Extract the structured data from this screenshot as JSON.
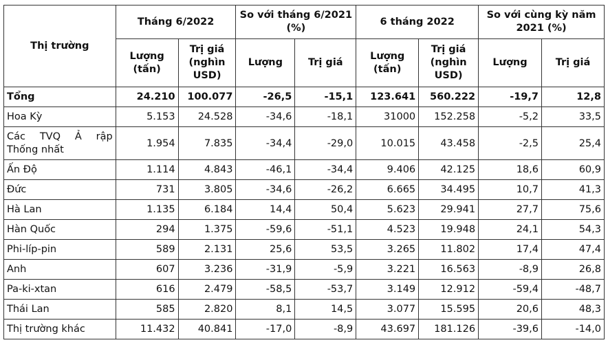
{
  "header": {
    "market": "Thị trường",
    "groups": [
      "Tháng 6/2022",
      "So với tháng 6/2021 (%)",
      "6 tháng 2022",
      "So với cùng kỳ năm 2021 (%)"
    ],
    "sub": [
      "Lượng (tấn)",
      "Trị giá (nghìn USD)",
      "Lượng",
      "Trị giá",
      "Lượng (tấn)",
      "Trị giá (nghìn USD)",
      "Lượng",
      "Trị giá"
    ]
  },
  "rows": [
    {
      "market": "Tổng",
      "v": [
        "24.210",
        "100.077",
        "-26,5",
        "-15,1",
        "123.641",
        "560.222",
        "-19,7",
        "12,8"
      ]
    },
    {
      "market": "Hoa Kỳ",
      "v": [
        "5.153",
        "24.528",
        "-34,6",
        "-18,1",
        "31000",
        "152.258",
        "-5,2",
        "33,5"
      ]
    },
    {
      "market": "Các TVQ Ả rập Thống nhất",
      "v": [
        "1.954",
        "7.835",
        "-34,4",
        "-29,0",
        "10.015",
        "43.458",
        "-2,5",
        "25,4"
      ]
    },
    {
      "market": "Ấn Độ",
      "v": [
        "1.114",
        "4.843",
        "-46,1",
        "-34,4",
        "9.406",
        "42.125",
        "18,6",
        "60,9"
      ]
    },
    {
      "market": "Đức",
      "v": [
        "731",
        "3.805",
        "-34,6",
        "-26,2",
        "6.665",
        "34.495",
        "10,7",
        "41,3"
      ]
    },
    {
      "market": "Hà Lan",
      "v": [
        "1.135",
        "6.184",
        "14,4",
        "50,4",
        "5.623",
        "29.941",
        "27,7",
        "75,6"
      ]
    },
    {
      "market": "Hàn Quốc",
      "v": [
        "294",
        "1.375",
        "-59,6",
        "-51,1",
        "4.523",
        "19.948",
        "24,1",
        "54,3"
      ]
    },
    {
      "market": "Phi-líp-pin",
      "v": [
        "589",
        "2.131",
        "25,6",
        "53,5",
        "3.265",
        "11.802",
        "17,4",
        "47,4"
      ]
    },
    {
      "market": "Anh",
      "v": [
        "607",
        "3.236",
        "-31,9",
        "-5,9",
        "3.221",
        "16.563",
        "-8,9",
        "26,8"
      ]
    },
    {
      "market": "Pa-ki-xtan",
      "v": [
        "616",
        "2.479",
        "-58,5",
        "-53,7",
        "3.149",
        "12.912",
        "-59,4",
        "-48,7"
      ]
    },
    {
      "market": "Thái Lan",
      "v": [
        "585",
        "2.820",
        "8,1",
        "14,5",
        "3.077",
        "15.595",
        "20,6",
        "48,3"
      ]
    },
    {
      "market": "Thị trường khác",
      "v": [
        "11.432",
        "40.841",
        "-17,0",
        "-8,9",
        "43.697",
        "181.126",
        "-39,6",
        "-14,0"
      ]
    }
  ]
}
